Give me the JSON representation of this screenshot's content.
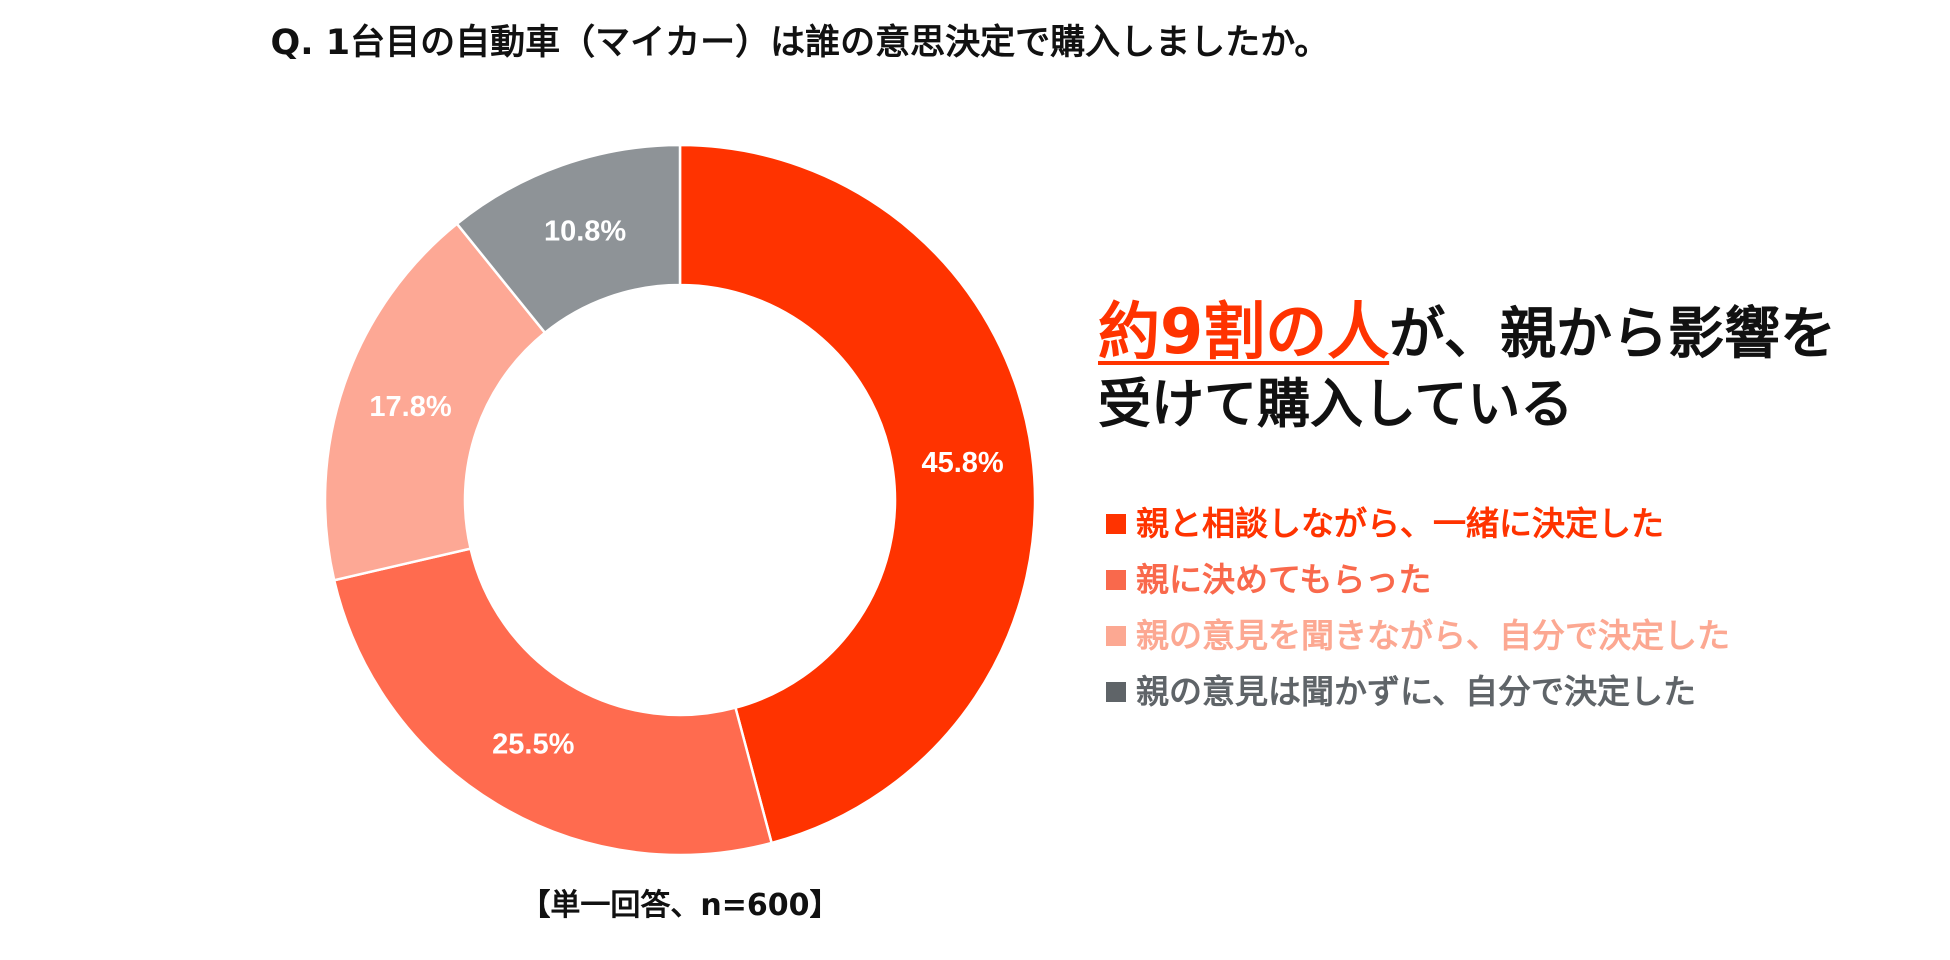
{
  "title": "Q. 1台目の自動車（マイカー）は誰の意思決定で購入しましたか。",
  "note": "【単一回答、n=600】",
  "headline": {
    "accent_text": "約9割の人",
    "rest_line1": "が、親から影響を",
    "line2": "受けて購入している",
    "accent_color": "#ff3300"
  },
  "chart_data": {
    "type": "pie",
    "variant": "donut",
    "title": "Q. 1台目の自動車（マイカー）は誰の意思決定で購入しましたか。",
    "unit": "%",
    "legend_position": "right",
    "slices": [
      {
        "label": "親と相談しながら、一緒に決定した",
        "value": 45.8,
        "value_label": "45.8%",
        "color": "#ff3300"
      },
      {
        "label": "親に決めてもらった",
        "value": 25.5,
        "value_label": "25.5%",
        "color": "#ff6b4f"
      },
      {
        "label": "親の意見を聞きながら、自分で決定した",
        "value": 17.8,
        "value_label": "17.8%",
        "color": "#fda895"
      },
      {
        "label": "親の意見は聞かずに、自分で決定した",
        "value": 10.8,
        "value_label": "10.8%",
        "color": "#8e9397"
      }
    ],
    "legend_text_colors": [
      "#ff3300",
      "#f9694c",
      "#fca892",
      "#5f6468"
    ]
  }
}
